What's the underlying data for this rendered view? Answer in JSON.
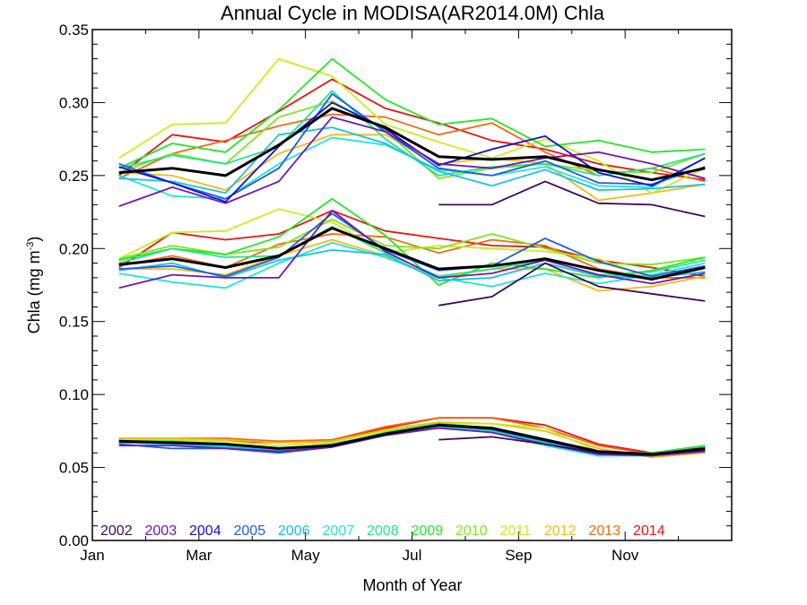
{
  "chart_data": {
    "type": "line",
    "title": "Annual Cycle in MODISA(AR2014.0M) Chla",
    "xlabel": "Month of Year",
    "ylabel_main": "Chla (mg m",
    "ylabel_sup": "-3",
    "ylabel_close": ")",
    "xlim": [
      1,
      13
    ],
    "ylim": [
      0.0,
      0.35
    ],
    "xticks": [
      {
        "value": 1,
        "label": "Jan"
      },
      {
        "value": 3,
        "label": "Mar"
      },
      {
        "value": 5,
        "label": "May"
      },
      {
        "value": 7,
        "label": "Jul"
      },
      {
        "value": 9,
        "label": "Sep"
      },
      {
        "value": 11,
        "label": "Nov"
      }
    ],
    "yticks": [
      {
        "value": 0.0,
        "label": "0.00"
      },
      {
        "value": 0.05,
        "label": "0.05"
      },
      {
        "value": 0.1,
        "label": "0.10"
      },
      {
        "value": 0.15,
        "label": "0.15"
      },
      {
        "value": 0.2,
        "label": "0.20"
      },
      {
        "value": 0.25,
        "label": "0.25"
      },
      {
        "value": 0.3,
        "label": "0.30"
      },
      {
        "value": 0.35,
        "label": "0.35"
      }
    ],
    "x": [
      1.5,
      2.5,
      3.5,
      4.5,
      5.5,
      6.5,
      7.5,
      8.5,
      9.5,
      10.5,
      11.5,
      12.5
    ],
    "grid": false,
    "legend_position": "bottom-left",
    "series": [
      {
        "name": "2002",
        "color": "#3c0a5a",
        "upper": [
          null,
          null,
          null,
          null,
          null,
          null,
          0.23,
          0.23,
          0.246,
          0.231,
          0.23,
          0.222
        ],
        "middle": [
          null,
          null,
          null,
          null,
          null,
          null,
          0.161,
          0.167,
          0.19,
          0.174,
          0.169,
          0.164
        ],
        "lower": [
          null,
          null,
          null,
          null,
          null,
          null,
          0.069,
          0.071,
          0.066,
          0.06,
          0.059,
          0.062
        ]
      },
      {
        "name": "2003",
        "color": "#6f17b8",
        "upper": [
          0.229,
          0.242,
          0.231,
          0.246,
          0.29,
          0.28,
          0.258,
          0.255,
          0.262,
          0.266,
          0.258,
          0.248
        ],
        "middle": [
          0.173,
          0.182,
          0.18,
          0.18,
          0.226,
          0.198,
          0.18,
          0.183,
          0.192,
          0.182,
          0.176,
          0.183
        ],
        "lower": [
          0.065,
          0.065,
          0.063,
          0.061,
          0.064,
          0.072,
          0.077,
          0.074,
          0.066,
          0.059,
          0.058,
          0.061
        ]
      },
      {
        "name": "2004",
        "color": "#1010d8",
        "upper": [
          0.256,
          0.245,
          0.232,
          0.27,
          0.3,
          0.282,
          0.257,
          0.268,
          0.277,
          0.252,
          0.243,
          0.262
        ]
      },
      {
        "name": "2005",
        "color": "#1e5ae6",
        "upper": [
          0.258,
          0.245,
          0.234,
          0.255,
          0.306,
          0.28,
          0.255,
          0.25,
          0.26,
          0.245,
          0.244,
          0.256
        ],
        "middle": [
          0.186,
          0.188,
          0.181,
          0.194,
          0.224,
          0.199,
          0.185,
          0.188,
          0.207,
          0.191,
          0.181,
          0.188
        ],
        "lower": [
          0.066,
          0.063,
          0.063,
          0.06,
          0.064,
          0.073,
          0.079,
          0.076,
          0.068,
          0.06,
          0.059,
          0.061
        ]
      },
      {
        "name": "2006",
        "color": "#19c0e6",
        "upper": [
          0.248,
          0.246,
          0.238,
          0.278,
          0.283,
          0.272,
          0.253,
          0.243,
          0.254,
          0.24,
          0.241,
          0.244
        ],
        "middle": [
          0.185,
          0.19,
          0.18,
          0.192,
          0.199,
          0.196,
          0.178,
          0.18,
          0.19,
          0.181,
          0.18,
          0.184
        ],
        "lower": [
          0.067,
          0.066,
          0.064,
          0.062,
          0.066,
          0.073,
          0.078,
          0.076,
          0.068,
          0.06,
          0.058,
          0.062
        ]
      },
      {
        "name": "2007",
        "color": "#22e6d6",
        "upper": [
          0.25,
          0.236,
          0.234,
          0.258,
          0.276,
          0.271,
          0.254,
          0.25,
          0.256,
          0.243,
          0.242,
          0.262
        ],
        "middle": [
          0.183,
          0.177,
          0.173,
          0.19,
          0.204,
          0.194,
          0.18,
          0.174,
          0.183,
          0.176,
          0.182,
          0.19
        ],
        "lower": [
          0.067,
          0.067,
          0.064,
          0.063,
          0.065,
          0.072,
          0.077,
          0.074,
          0.065,
          0.058,
          0.058,
          0.062
        ]
      },
      {
        "name": "2008",
        "color": "#22e68a",
        "upper": [
          0.255,
          0.264,
          0.258,
          0.27,
          0.308,
          0.275,
          0.25,
          0.256,
          0.258,
          0.25,
          0.255,
          0.265
        ],
        "middle": [
          0.19,
          0.2,
          0.194,
          0.195,
          0.215,
          0.197,
          0.181,
          0.186,
          0.192,
          0.182,
          0.184,
          0.192
        ],
        "lower": [
          0.067,
          0.067,
          0.065,
          0.062,
          0.064,
          0.072,
          0.078,
          0.075,
          0.067,
          0.058,
          0.06,
          0.064
        ]
      },
      {
        "name": "2009",
        "color": "#26e626",
        "upper": [
          0.255,
          0.272,
          0.266,
          0.295,
          0.33,
          0.302,
          0.285,
          0.289,
          0.27,
          0.274,
          0.266,
          0.268
        ],
        "middle": [
          0.192,
          0.2,
          0.196,
          0.208,
          0.234,
          0.209,
          0.175,
          0.19,
          0.186,
          0.18,
          0.185,
          0.194
        ],
        "lower": [
          0.068,
          0.068,
          0.066,
          0.063,
          0.065,
          0.074,
          0.08,
          0.077,
          0.069,
          0.059,
          0.06,
          0.065
        ]
      },
      {
        "name": "2010",
        "color": "#7ee61e",
        "upper": [
          0.252,
          0.265,
          0.258,
          0.29,
          0.301,
          0.281,
          0.248,
          0.255,
          0.258,
          0.253,
          0.252,
          0.265
        ],
        "middle": [
          0.193,
          0.202,
          0.196,
          0.201,
          0.22,
          0.202,
          0.2,
          0.21,
          0.2,
          0.19,
          0.189,
          0.194
        ],
        "lower": [
          0.068,
          0.067,
          0.066,
          0.063,
          0.066,
          0.073,
          0.079,
          0.076,
          0.069,
          0.06,
          0.06,
          0.064
        ]
      },
      {
        "name": "2011",
        "color": "#c8ee1e",
        "upper": [
          0.262,
          0.285,
          0.286,
          0.33,
          0.318,
          0.285,
          0.273,
          0.262,
          0.275,
          0.26,
          0.238,
          0.255
        ],
        "middle": [
          0.193,
          0.211,
          0.212,
          0.227,
          0.218,
          0.197,
          0.202,
          0.2,
          0.198,
          0.193,
          0.18,
          0.184
        ],
        "lower": [
          0.069,
          0.069,
          0.068,
          0.065,
          0.067,
          0.075,
          0.08,
          0.08,
          0.077,
          0.061,
          0.058,
          0.061
        ]
      },
      {
        "name": "2012",
        "color": "#f0bc18",
        "upper": [
          0.252,
          0.25,
          0.24,
          0.265,
          0.278,
          0.278,
          0.258,
          0.262,
          0.258,
          0.233,
          0.238,
          0.244
        ],
        "middle": [
          0.186,
          0.186,
          0.182,
          0.195,
          0.206,
          0.195,
          0.18,
          0.186,
          0.186,
          0.171,
          0.174,
          0.181
        ],
        "lower": [
          0.07,
          0.07,
          0.069,
          0.067,
          0.068,
          0.076,
          0.081,
          0.08,
          0.075,
          0.063,
          0.057,
          0.06
        ]
      },
      {
        "name": "2013",
        "color": "#ef6a14",
        "upper": [
          0.248,
          0.265,
          0.274,
          0.284,
          0.292,
          0.29,
          0.278,
          0.286,
          0.266,
          0.25,
          0.255,
          0.246
        ],
        "middle": [
          0.188,
          0.195,
          0.187,
          0.203,
          0.21,
          0.208,
          0.197,
          0.206,
          0.202,
          0.186,
          0.18,
          0.18
        ],
        "lower": [
          0.07,
          0.07,
          0.07,
          0.068,
          0.069,
          0.078,
          0.084,
          0.084,
          0.077,
          0.065,
          0.059,
          0.061
        ]
      },
      {
        "name": "2014",
        "color": "#e81414",
        "upper": [
          0.25,
          0.278,
          0.273,
          0.294,
          0.316,
          0.296,
          0.286,
          0.274,
          0.268,
          0.258,
          0.252,
          0.247
        ],
        "middle": [
          0.187,
          0.211,
          0.206,
          0.21,
          0.226,
          0.212,
          0.207,
          0.202,
          0.201,
          0.192,
          0.187,
          0.181
        ],
        "lower": [
          0.069,
          0.069,
          0.068,
          0.067,
          0.068,
          0.077,
          0.084,
          0.084,
          0.079,
          0.066,
          0.06,
          0.062
        ]
      },
      {
        "color": "#000000",
        "mean": true,
        "upper": [
          0.252,
          0.255,
          0.25,
          0.271,
          0.296,
          0.283,
          0.263,
          0.261,
          0.263,
          0.254,
          0.247,
          0.255
        ],
        "middle": [
          0.189,
          0.193,
          0.187,
          0.195,
          0.214,
          0.2,
          0.186,
          0.188,
          0.193,
          0.185,
          0.179,
          0.187
        ],
        "lower": [
          0.068,
          0.067,
          0.066,
          0.063,
          0.065,
          0.073,
          0.079,
          0.077,
          0.069,
          0.061,
          0.059,
          0.063
        ]
      }
    ]
  }
}
